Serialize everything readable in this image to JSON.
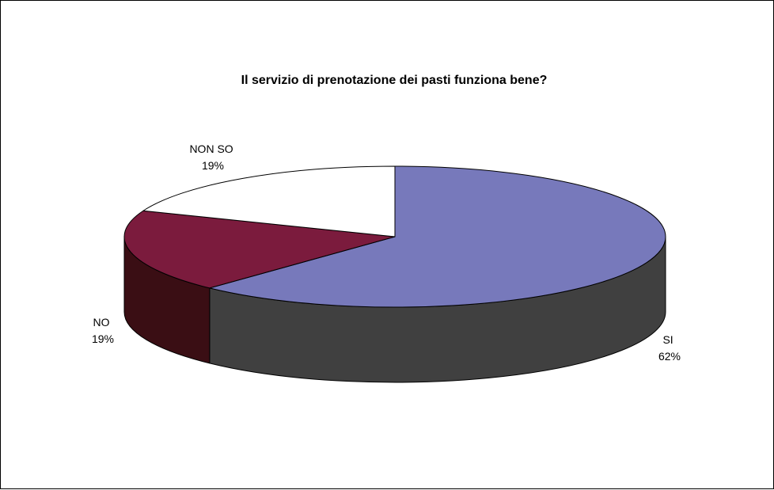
{
  "chart_data": {
    "type": "pie",
    "three_d": true,
    "title": "Il servizio di prenotazione dei pasti funziona bene?",
    "legend": "none",
    "slices": [
      {
        "category": "SI",
        "value": 62,
        "value_label": "62%",
        "color": "#7779BB",
        "side_color": "#404040"
      },
      {
        "category": "NO",
        "value": 19,
        "value_label": "19%",
        "color": "#7B1B3D",
        "side_color": "#3A0E14"
      },
      {
        "category": "NON SO",
        "value": 19,
        "value_label": "19%",
        "color": "#FFFFFF",
        "side_color": "#FFFFFF"
      }
    ]
  }
}
